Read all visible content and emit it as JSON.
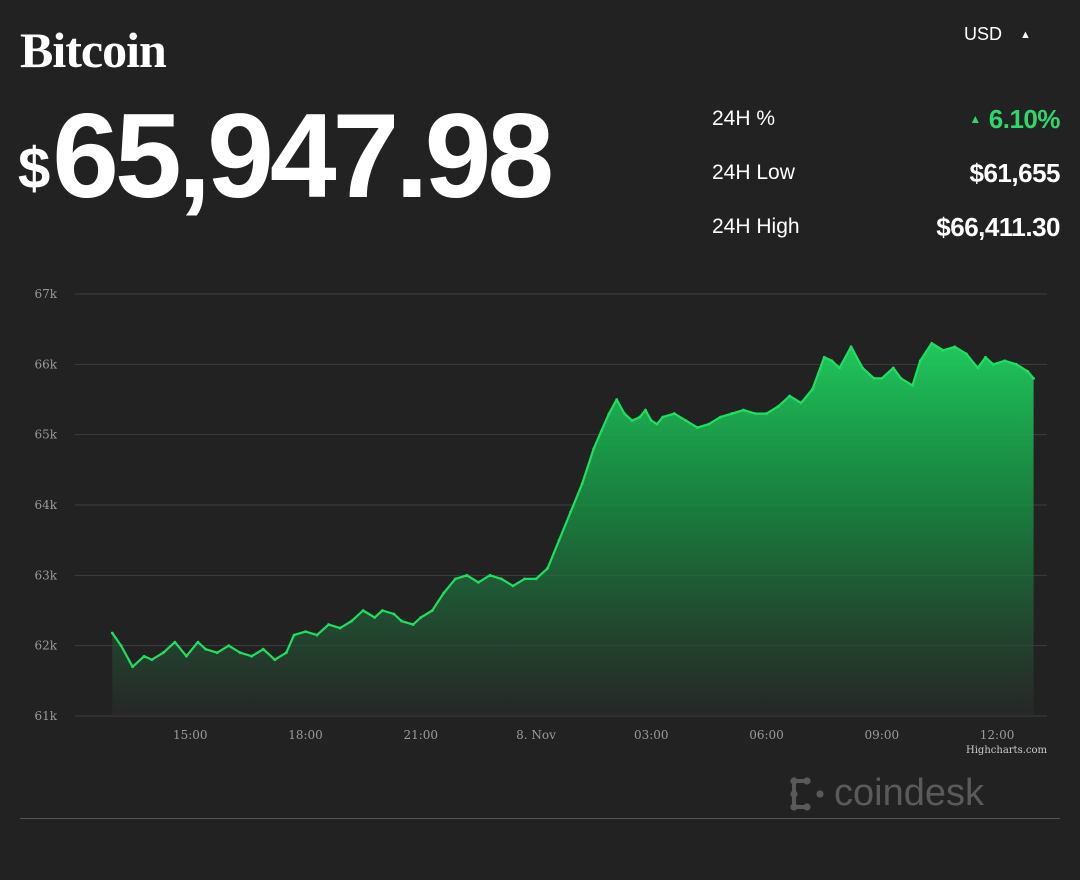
{
  "title": "Bitcoin",
  "currency": {
    "label": "USD",
    "caret": "▲"
  },
  "price": {
    "symbol": "$",
    "value": "65,947.98"
  },
  "stats": [
    {
      "label": "24H %",
      "value": "6.10%",
      "direction": "up",
      "indicator": "▲"
    },
    {
      "label": "24H Low",
      "value": "$61,655"
    },
    {
      "label": "24H High",
      "value": "$66,411.30"
    }
  ],
  "colors": {
    "up": "#2fd66b",
    "line": "#1ee05e",
    "background": "#222222",
    "grid": "#3e3e3e"
  },
  "credit": "Highcharts.com",
  "brand": {
    "name": "coindesk",
    "icon": "coindesk-logo-icon"
  },
  "chart_data": {
    "type": "area",
    "title": "",
    "xlabel": "",
    "ylabel": "",
    "ylim": [
      61000,
      67000
    ],
    "y_ticks": [
      61000,
      62000,
      63000,
      64000,
      65000,
      66000,
      67000
    ],
    "y_tick_labels": [
      "61k",
      "62k",
      "63k",
      "64k",
      "65k",
      "66k",
      "67k"
    ],
    "x_ticks": [
      {
        "hour": 15,
        "label": "15:00"
      },
      {
        "hour": 18,
        "label": "18:00"
      },
      {
        "hour": 21,
        "label": "21:00"
      },
      {
        "hour": 24,
        "label": "8. Nov"
      },
      {
        "hour": 27,
        "label": "03:00"
      },
      {
        "hour": 30,
        "label": "06:00"
      },
      {
        "hour": 33,
        "label": "09:00"
      },
      {
        "hour": 36,
        "label": "12:00"
      }
    ],
    "x_hours": [
      12.97,
      13.2,
      13.5,
      13.8,
      14.0,
      14.3,
      14.6,
      14.9,
      15.2,
      15.4,
      15.7,
      16.0,
      16.3,
      16.6,
      16.9,
      17.2,
      17.5,
      17.7,
      18.0,
      18.3,
      18.6,
      18.9,
      19.2,
      19.5,
      19.8,
      20.0,
      20.3,
      20.5,
      20.8,
      21.0,
      21.3,
      21.6,
      21.9,
      22.2,
      22.5,
      22.8,
      23.1,
      23.4,
      23.7,
      24.0,
      24.3,
      24.6,
      24.9,
      25.2,
      25.5,
      25.7,
      25.9,
      26.1,
      26.3,
      26.5,
      26.7,
      26.85,
      27.0,
      27.15,
      27.3,
      27.6,
      27.9,
      28.2,
      28.5,
      28.8,
      29.1,
      29.4,
      29.7,
      30.0,
      30.3,
      30.6,
      30.9,
      31.2,
      31.5,
      31.7,
      31.9,
      32.2,
      32.5,
      32.8,
      33.0,
      33.3,
      33.5,
      33.8,
      34.0,
      34.3,
      34.6,
      34.9,
      35.2,
      35.5,
      35.7,
      35.9,
      36.2,
      36.5,
      36.8,
      36.95
    ],
    "values": [
      62180,
      62000,
      61700,
      61850,
      61800,
      61900,
      62050,
      61850,
      62050,
      61950,
      61900,
      62000,
      61900,
      61850,
      61950,
      61800,
      61900,
      62150,
      62200,
      62150,
      62300,
      62250,
      62350,
      62500,
      62400,
      62500,
      62450,
      62350,
      62300,
      62400,
      62500,
      62750,
      62950,
      63000,
      62900,
      63000,
      62950,
      62850,
      62950,
      62950,
      63100,
      63500,
      63900,
      64300,
      64800,
      65050,
      65300,
      65500,
      65300,
      65200,
      65250,
      65350,
      65200,
      65150,
      65250,
      65300,
      65200,
      65100,
      65150,
      65250,
      65300,
      65350,
      65300,
      65300,
      65400,
      65550,
      65450,
      65650,
      66100,
      66050,
      65950,
      66250,
      65950,
      65800,
      65800,
      65950,
      65800,
      65700,
      66050,
      66300,
      66200,
      66250,
      66150,
      65950,
      66100,
      66000,
      66050,
      66000,
      65900,
      65800
    ]
  }
}
